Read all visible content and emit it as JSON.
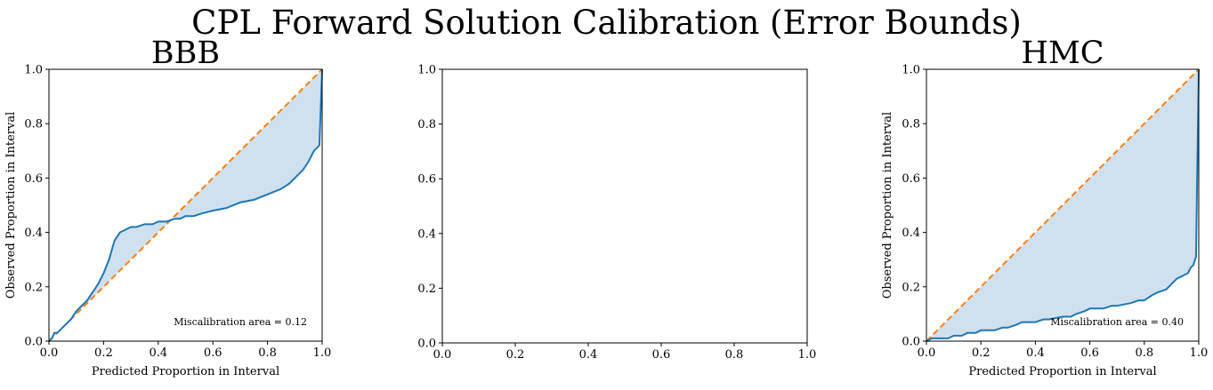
{
  "figure": {
    "suptitle": "CPL Forward Solution Calibration (Error Bounds)"
  },
  "colors": {
    "curve": "#1f77b4",
    "fill": "#cfe1ef",
    "diagonal": "#ff7f0e",
    "axis": "#000000"
  },
  "chart_data": [
    {
      "type": "line",
      "title": "BBB",
      "xlabel": "Predicted Proportion in Interval",
      "ylabel": "Observed Proportion in Interval",
      "xlim": [
        0,
        1
      ],
      "ylim": [
        0,
        1
      ],
      "xticks": [
        "0.0",
        "0.2",
        "0.4",
        "0.6",
        "0.8",
        "1.0"
      ],
      "yticks": [
        "0.0",
        "0.2",
        "0.4",
        "0.6",
        "0.8",
        "1.0"
      ],
      "annotation": "Miscalibration area = 0.12",
      "grid": false,
      "series": [
        {
          "style": "calibration-curve",
          "x": [
            0.0,
            0.01,
            0.02,
            0.03,
            0.04,
            0.05,
            0.06,
            0.08,
            0.1,
            0.12,
            0.14,
            0.16,
            0.18,
            0.2,
            0.22,
            0.24,
            0.26,
            0.28,
            0.3,
            0.32,
            0.35,
            0.38,
            0.4,
            0.43,
            0.46,
            0.48,
            0.5,
            0.53,
            0.56,
            0.6,
            0.65,
            0.7,
            0.75,
            0.8,
            0.85,
            0.88,
            0.91,
            0.93,
            0.95,
            0.97,
            0.98,
            0.99,
            1.0
          ],
          "y": [
            0.0,
            0.01,
            0.03,
            0.03,
            0.04,
            0.05,
            0.06,
            0.08,
            0.11,
            0.13,
            0.15,
            0.18,
            0.21,
            0.25,
            0.3,
            0.37,
            0.4,
            0.41,
            0.42,
            0.42,
            0.43,
            0.43,
            0.44,
            0.44,
            0.45,
            0.45,
            0.46,
            0.46,
            0.47,
            0.48,
            0.49,
            0.51,
            0.52,
            0.54,
            0.56,
            0.58,
            0.61,
            0.63,
            0.66,
            0.7,
            0.71,
            0.72,
            1.0
          ]
        },
        {
          "style": "ideal-diagonal",
          "x": [
            0,
            1
          ],
          "y": [
            0,
            1
          ]
        }
      ]
    },
    {
      "type": "line",
      "title": "",
      "xlabel": "",
      "ylabel": "",
      "xlim": [
        0,
        1
      ],
      "ylim": [
        0,
        1
      ],
      "xticks": [
        "0.0",
        "0.2",
        "0.4",
        "0.6",
        "0.8",
        "1.0"
      ],
      "yticks": [
        "0.0",
        "0.2",
        "0.4",
        "0.6",
        "0.8",
        "1.0"
      ],
      "annotation": "",
      "grid": false,
      "series": []
    },
    {
      "type": "line",
      "title": "HMC",
      "xlabel": "Predicted Proportion in Interval",
      "ylabel": "Observed Proportion in Interval",
      "xlim": [
        0,
        1
      ],
      "ylim": [
        0,
        1
      ],
      "xticks": [
        "0.0",
        "0.2",
        "0.4",
        "0.6",
        "0.8",
        "1.0"
      ],
      "yticks": [
        "0.0",
        "0.2",
        "0.4",
        "0.6",
        "0.8",
        "1.0"
      ],
      "annotation": "Miscalibration area = 0.40",
      "grid": false,
      "series": [
        {
          "style": "calibration-curve",
          "x": [
            0.0,
            0.02,
            0.05,
            0.08,
            0.1,
            0.13,
            0.15,
            0.18,
            0.2,
            0.25,
            0.28,
            0.3,
            0.33,
            0.35,
            0.4,
            0.43,
            0.45,
            0.5,
            0.53,
            0.55,
            0.58,
            0.6,
            0.65,
            0.68,
            0.7,
            0.75,
            0.78,
            0.8,
            0.83,
            0.85,
            0.88,
            0.9,
            0.92,
            0.94,
            0.96,
            0.97,
            0.98,
            0.99,
            1.0
          ],
          "y": [
            0.0,
            0.01,
            0.01,
            0.01,
            0.02,
            0.02,
            0.03,
            0.03,
            0.04,
            0.04,
            0.05,
            0.05,
            0.06,
            0.07,
            0.07,
            0.08,
            0.08,
            0.09,
            0.09,
            0.1,
            0.11,
            0.12,
            0.12,
            0.13,
            0.13,
            0.14,
            0.15,
            0.15,
            0.17,
            0.18,
            0.19,
            0.21,
            0.23,
            0.24,
            0.25,
            0.27,
            0.28,
            0.31,
            1.0
          ]
        },
        {
          "style": "ideal-diagonal",
          "x": [
            0,
            1
          ],
          "y": [
            0,
            1
          ]
        }
      ]
    }
  ]
}
